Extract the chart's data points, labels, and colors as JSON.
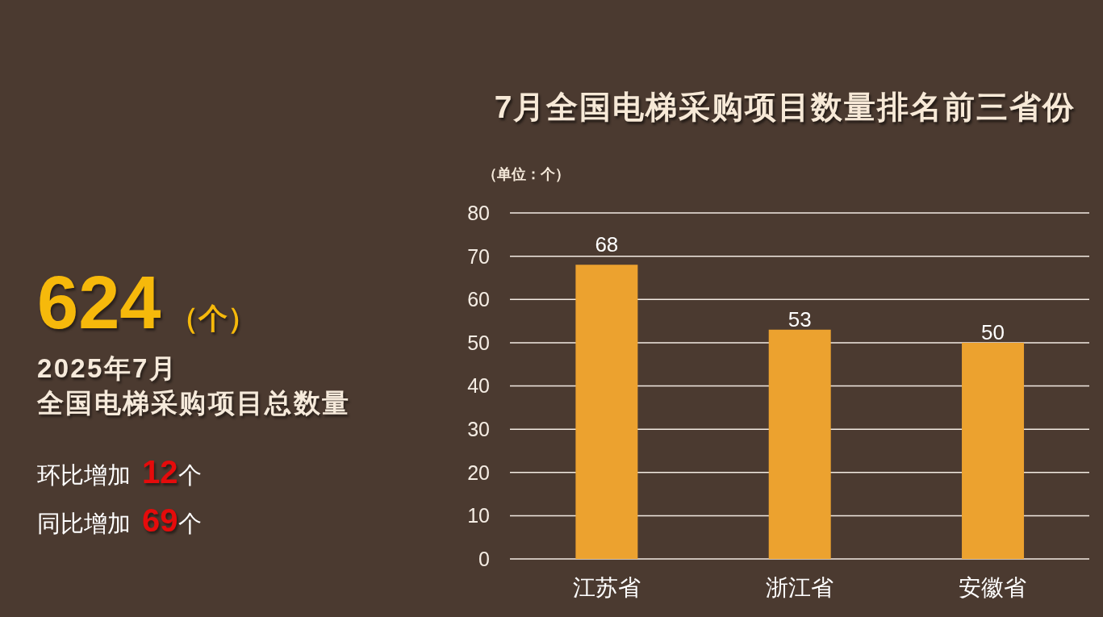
{
  "chart_data": [
    {
      "type": "other",
      "title": "624（个）",
      "subtitle": "2025年7月",
      "annotations": [
        "全国电梯采购项目总数量",
        "环比增加 12个",
        "同比增加 69个"
      ]
    },
    {
      "type": "bar",
      "title": "7月全国电梯采购项目数量排名前三省份",
      "ylabel": "（单位：个）",
      "categories": [
        "江苏省",
        "浙江省",
        "安徽省"
      ],
      "values": [
        68,
        53,
        50
      ],
      "color": "#eca22f",
      "ylim": [
        0,
        80
      ],
      "yticks": [
        0,
        10,
        20,
        30,
        40,
        50,
        60,
        70,
        80
      ],
      "grid": "y",
      "data_labels": true
    }
  ]
}
